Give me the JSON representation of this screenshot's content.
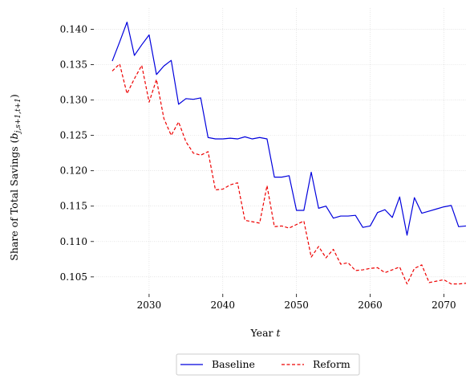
{
  "chart_data": {
    "type": "line",
    "title": "",
    "xlabel": "Year t",
    "ylabel": "Share of Total Savings (b_{j,s+1,t+1})",
    "xlim": [
      2022.5,
      2073
    ],
    "ylim": [
      0.1026,
      0.143
    ],
    "xticks": [
      2030,
      2040,
      2050,
      2060,
      2070
    ],
    "yticks": [
      0.105,
      0.11,
      0.115,
      0.12,
      0.125,
      0.13,
      0.135,
      0.14
    ],
    "xtick_labels": [
      "2030",
      "2040",
      "2050",
      "2060",
      "2070"
    ],
    "ytick_labels": [
      "0.105",
      "0.110",
      "0.115",
      "0.120",
      "0.125",
      "0.130",
      "0.135",
      "0.140"
    ],
    "grid": true,
    "legend_position": "bottom-center",
    "x": [
      2025,
      2026,
      2027,
      2028,
      2029,
      2030,
      2031,
      2032,
      2033,
      2034,
      2035,
      2036,
      2037,
      2038,
      2039,
      2040,
      2041,
      2042,
      2043,
      2044,
      2045,
      2046,
      2047,
      2048,
      2049,
      2050,
      2051,
      2052,
      2053,
      2054,
      2055,
      2056,
      2057,
      2058,
      2059,
      2060,
      2061,
      2062,
      2063,
      2064,
      2065,
      2066,
      2067,
      2068,
      2069,
      2070,
      2071,
      2072,
      2073
    ],
    "series": [
      {
        "name": "Baseline",
        "color": "#0000dd",
        "dash": "solid",
        "values": [
          0.1355,
          0.1382,
          0.141,
          0.1363,
          0.1378,
          0.1392,
          0.1336,
          0.1348,
          0.1356,
          0.1294,
          0.1302,
          0.1301,
          0.1303,
          0.1247,
          0.1245,
          0.1245,
          0.1246,
          0.1245,
          0.1248,
          0.1245,
          0.1247,
          0.1245,
          0.1191,
          0.1191,
          0.1193,
          0.1144,
          0.1144,
          0.1198,
          0.1147,
          0.115,
          0.1133,
          0.1136,
          0.1136,
          0.1137,
          0.112,
          0.1122,
          0.1141,
          0.1145,
          0.1134,
          0.1163,
          0.1109,
          0.1162,
          0.114,
          0.1143,
          0.1146,
          0.1149,
          0.1151,
          0.1121,
          0.1122
        ]
      },
      {
        "name": "Reform",
        "color": "#ee0000",
        "dash": "dashed",
        "values": [
          0.1341,
          0.1351,
          0.1309,
          0.133,
          0.1349,
          0.1297,
          0.1329,
          0.1274,
          0.125,
          0.1269,
          0.1241,
          0.1225,
          0.1222,
          0.1227,
          0.1173,
          0.1174,
          0.118,
          0.1183,
          0.113,
          0.1128,
          0.1126,
          0.1179,
          0.1121,
          0.1122,
          0.1119,
          0.1124,
          0.1129,
          0.1078,
          0.1093,
          0.1077,
          0.1089,
          0.1068,
          0.107,
          0.1059,
          0.106,
          0.1062,
          0.1063,
          0.1056,
          0.106,
          0.1064,
          0.104,
          0.1062,
          0.1067,
          0.1042,
          0.1044,
          0.1046,
          0.104,
          0.104,
          0.1041
        ]
      }
    ]
  }
}
